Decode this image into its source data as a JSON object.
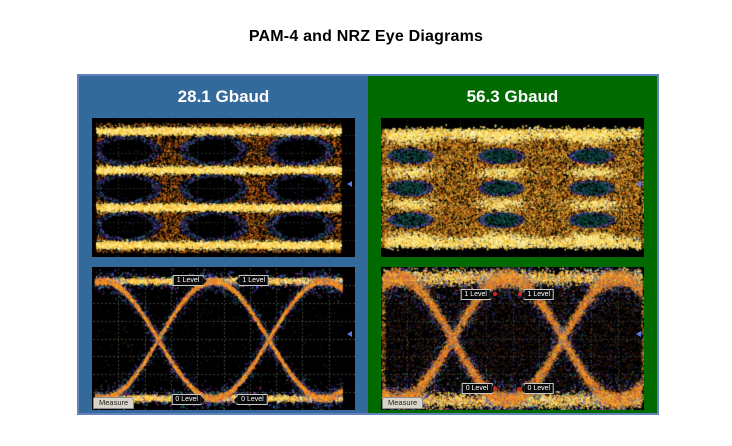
{
  "page": {
    "title": "PAM-4 and NRZ Eye Diagrams"
  },
  "colors": {
    "page_bg": "#FFFFFF",
    "left_header_bg": "#34699C",
    "right_header_bg": "#006A00",
    "header_text": "#FFFFFF",
    "board_border": "#6383BF",
    "scope_bg": "#000000",
    "trigger_marker": "#5C76E8",
    "level_marker_dot": "#D3281E",
    "measure_button_bg": "#D8D4C8"
  },
  "panels": [
    {
      "label": "28.1 Gbaud",
      "diagrams": [
        {
          "modulation": "PAM-4",
          "eye_state": "open",
          "eye_rows": 3,
          "eye_columns": 3
        },
        {
          "modulation": "NRZ",
          "eye_state": "open",
          "annotations": {
            "one_level": "1 Level",
            "zero_level": "0 Level",
            "measure": "Measure"
          }
        }
      ]
    },
    {
      "label": "56.3 Gbaud",
      "diagrams": [
        {
          "modulation": "PAM-4",
          "eye_state": "closed",
          "eye_rows": 3,
          "eye_columns": 3
        },
        {
          "modulation": "NRZ",
          "eye_state": "closed",
          "annotations": {
            "one_level": "1 Level",
            "zero_level": "0 Level",
            "measure": "Measure"
          }
        }
      ]
    }
  ]
}
